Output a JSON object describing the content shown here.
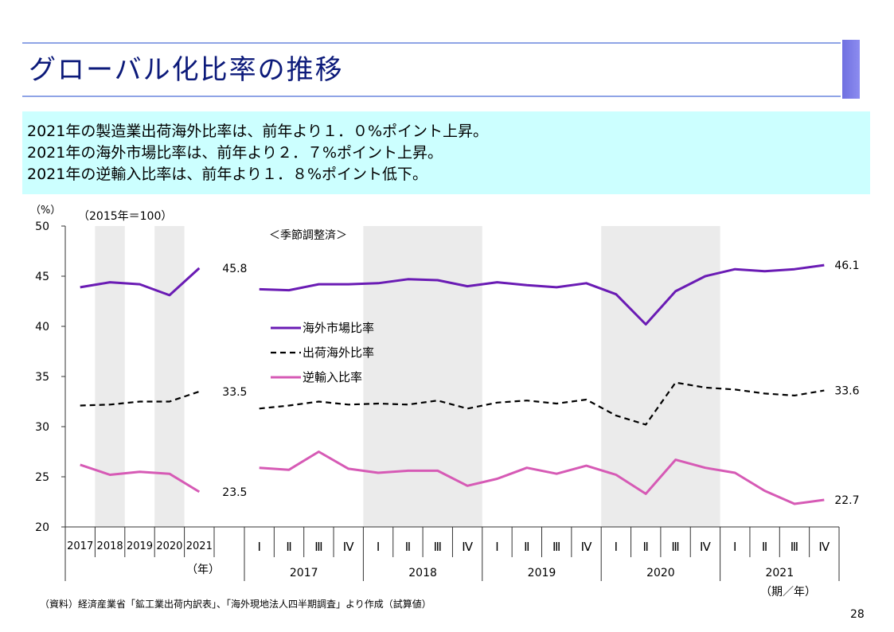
{
  "title": "グローバル化比率の推移",
  "summary": [
    "2021年の製造業出荷海外比率は、前年より１．０%ポイント上昇。",
    "2021年の海外市場比率は、前年より２．７%ポイント上昇。",
    "2021年の逆輸入比率は、前年より１．８%ポイント低下。"
  ],
  "source_note": "（資料）経済産業省「鉱工業出荷内訳表」、「海外現地法人四半期調査」より作成（試算値）",
  "page_number": "28",
  "chart_data": {
    "type": "line",
    "y_unit_label": "（%）",
    "base_note": "（2015年＝100）",
    "seasonal_note": "＜季節調整済＞",
    "ylim": [
      20,
      50
    ],
    "yticks": [
      "20",
      "25",
      "30",
      "35",
      "40",
      "45",
      "50"
    ],
    "annual": {
      "categories": [
        "2017",
        "2018",
        "2019",
        "2020",
        "2021"
      ],
      "unit_label": "（年）",
      "series": [
        {
          "name": "海外市場比率",
          "values": [
            43.9,
            44.4,
            44.2,
            43.1,
            45.8
          ],
          "end_label": "45.8"
        },
        {
          "name": "出荷海外比率",
          "values": [
            32.1,
            32.2,
            32.5,
            32.5,
            33.5
          ],
          "end_label": "33.5"
        },
        {
          "name": "逆輸入比率",
          "values": [
            26.2,
            25.2,
            25.5,
            25.3,
            23.5
          ],
          "end_label": "23.5"
        }
      ]
    },
    "quarterly": {
      "quarter_labels": [
        "Ⅰ",
        "Ⅱ",
        "Ⅲ",
        "Ⅳ",
        "Ⅰ",
        "Ⅱ",
        "Ⅲ",
        "Ⅳ",
        "Ⅰ",
        "Ⅱ",
        "Ⅲ",
        "Ⅳ",
        "Ⅰ",
        "Ⅱ",
        "Ⅲ",
        "Ⅳ",
        "Ⅰ",
        "Ⅱ",
        "Ⅲ",
        "Ⅳ"
      ],
      "years": [
        "2017",
        "2018",
        "2019",
        "2020",
        "2021"
      ],
      "unit_label": "（期／年）",
      "series": [
        {
          "name": "海外市場比率",
          "values": [
            43.7,
            43.6,
            44.2,
            44.2,
            44.3,
            44.7,
            44.6,
            44.0,
            44.4,
            44.1,
            43.9,
            44.3,
            43.2,
            40.2,
            43.5,
            45.0,
            45.7,
            45.5,
            45.7,
            46.1
          ],
          "end_label": "46.1"
        },
        {
          "name": "出荷海外比率",
          "values": [
            31.8,
            32.1,
            32.5,
            32.2,
            32.3,
            32.2,
            32.6,
            31.8,
            32.4,
            32.6,
            32.3,
            32.7,
            31.1,
            30.2,
            34.4,
            33.9,
            33.7,
            33.3,
            33.1,
            33.6
          ],
          "end_label": "33.6"
        },
        {
          "name": "逆輸入比率",
          "values": [
            25.9,
            25.7,
            27.5,
            25.8,
            25.4,
            25.6,
            25.6,
            24.1,
            24.8,
            25.9,
            25.3,
            26.1,
            25.2,
            23.3,
            26.7,
            25.9,
            25.4,
            23.6,
            22.3,
            22.7
          ],
          "end_label": "22.7"
        }
      ]
    },
    "legend": [
      {
        "name": "海外市場比率",
        "color": "#6a1bb4",
        "style": "solid"
      },
      {
        "name": "出荷海外比率",
        "color": "#000000",
        "style": "dashed"
      },
      {
        "name": "逆輸入比率",
        "color": "#d65ab5",
        "style": "solid"
      }
    ]
  }
}
